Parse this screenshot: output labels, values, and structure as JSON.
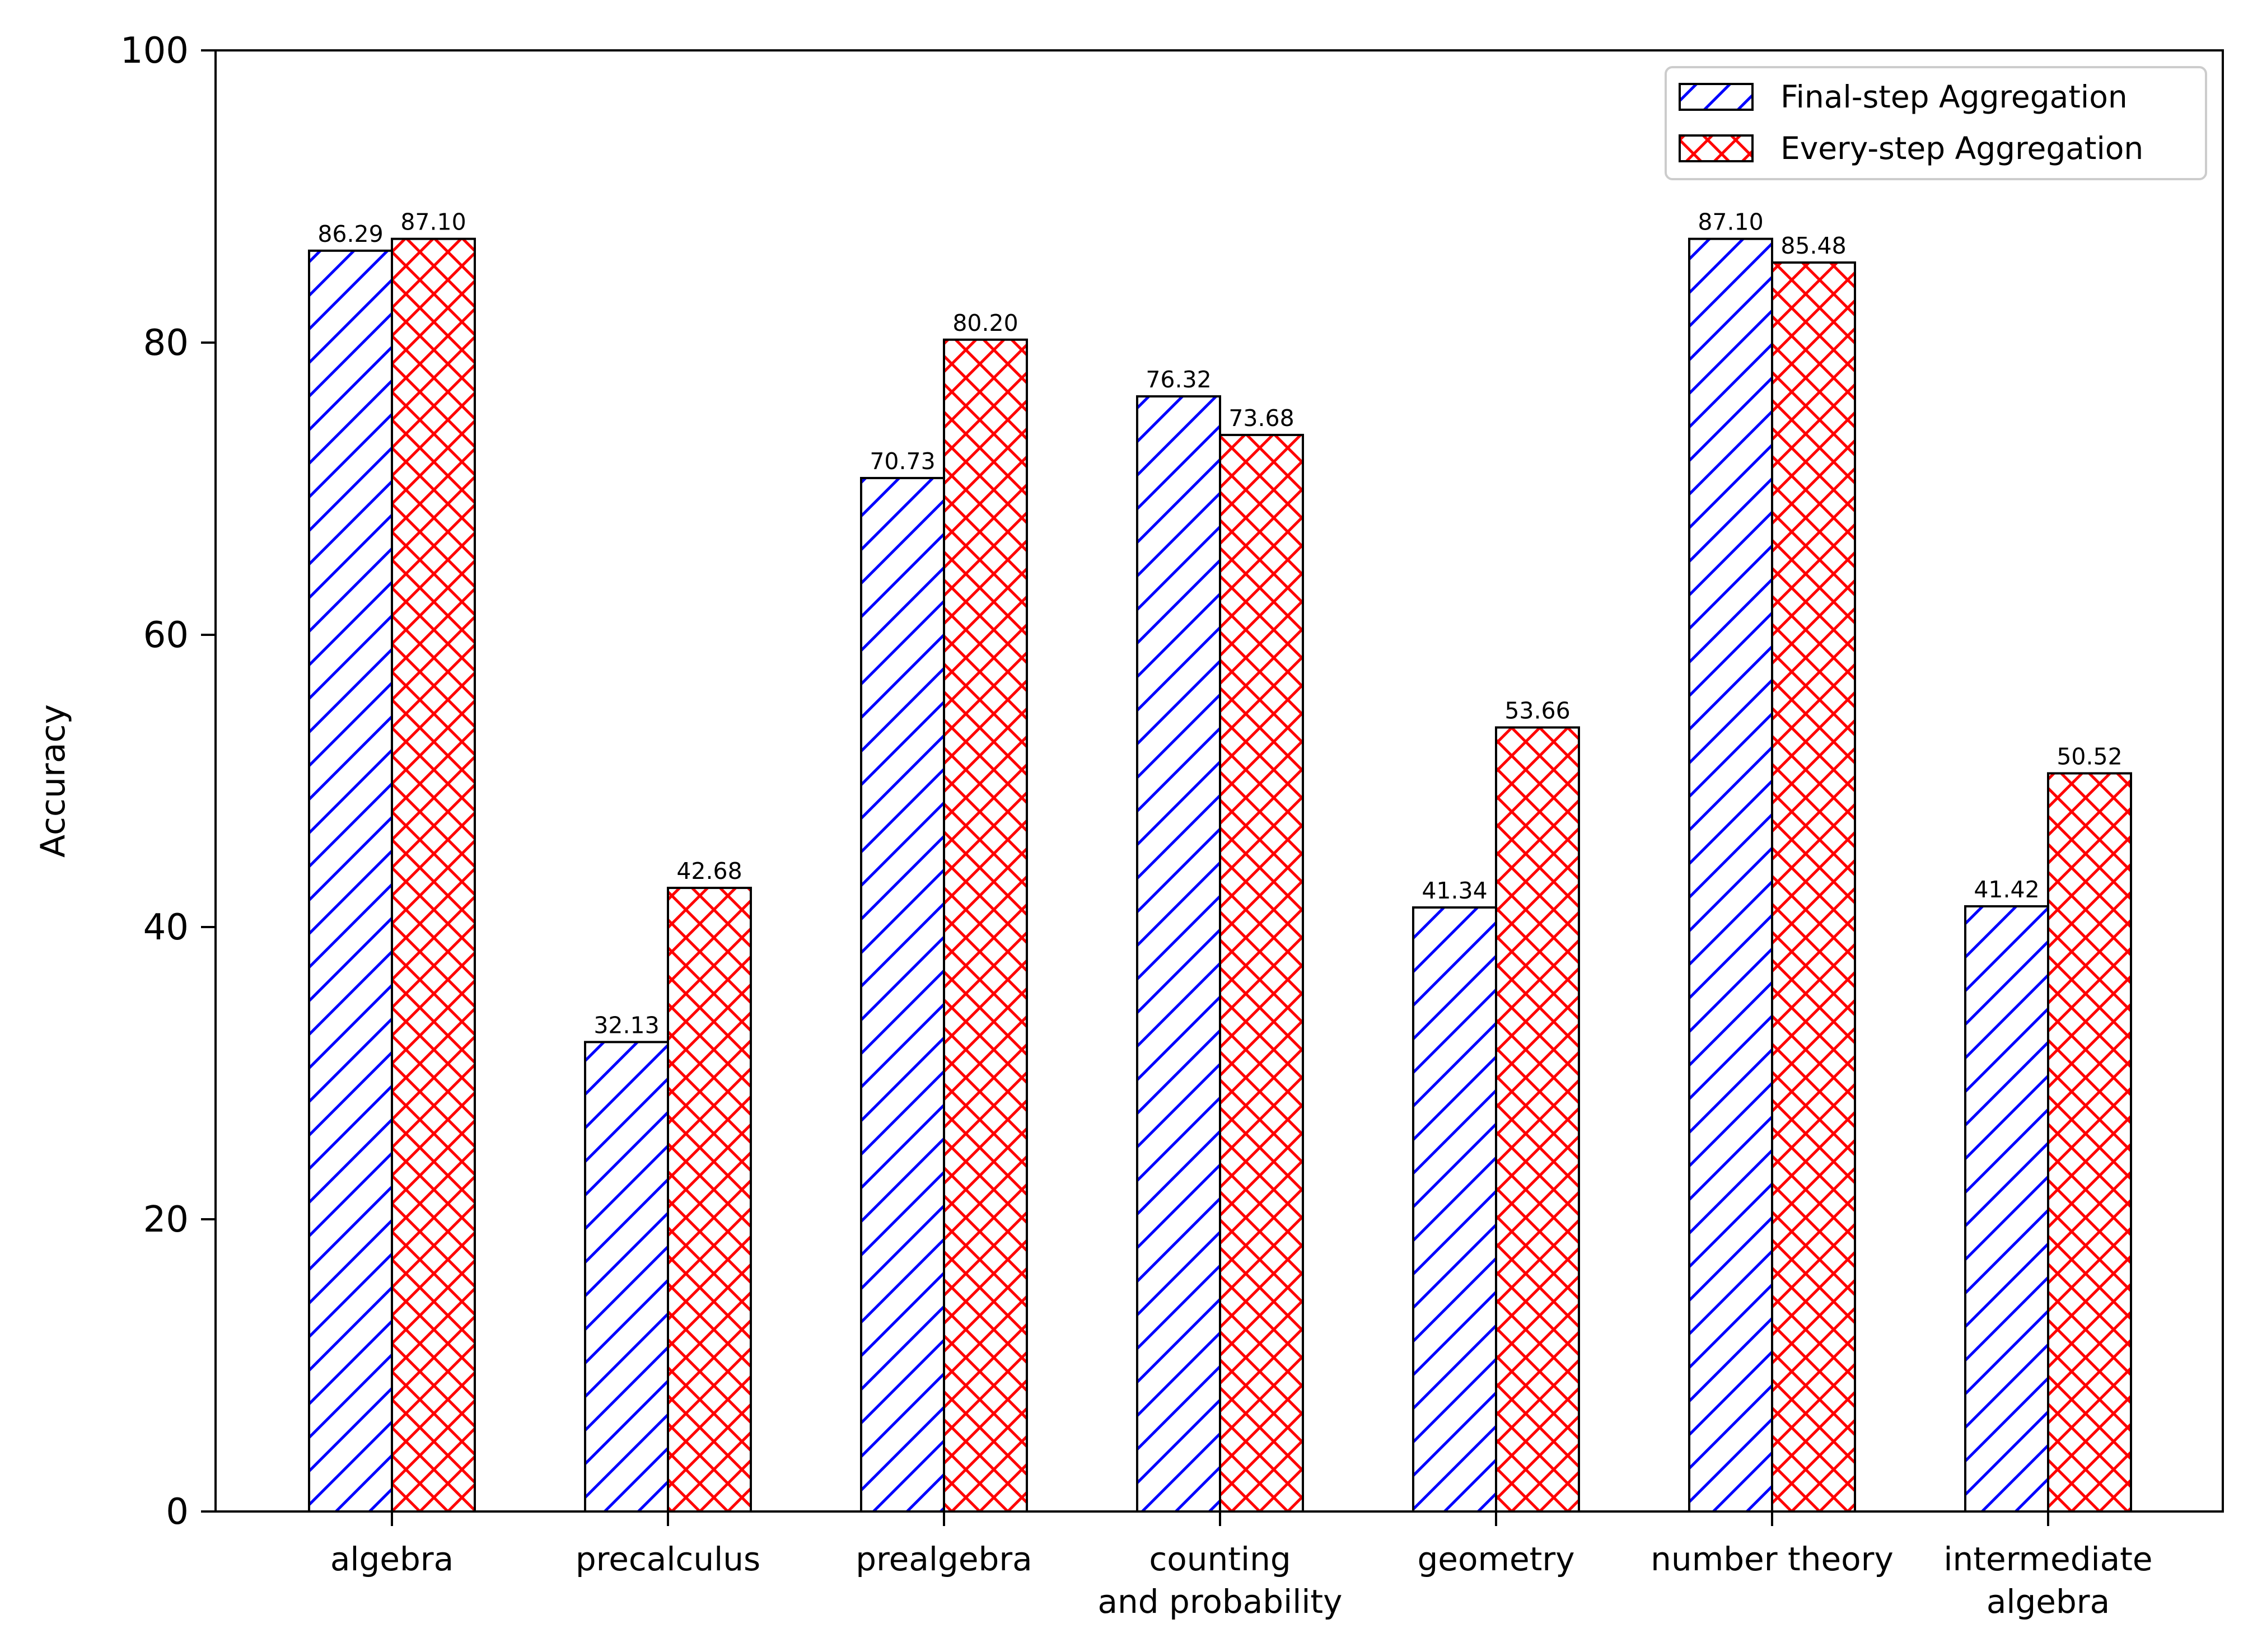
{
  "chart_data": {
    "type": "bar",
    "title": "",
    "xlabel": "",
    "ylabel": "Accuracy",
    "ylim": [
      0,
      100
    ],
    "yticks": [
      0,
      20,
      40,
      60,
      80,
      100
    ],
    "grid": false,
    "legend_position": "top-right",
    "categories": [
      [
        "algebra"
      ],
      [
        "precalculus"
      ],
      [
        "prealgebra"
      ],
      [
        "counting",
        "and probability"
      ],
      [
        "geometry"
      ],
      [
        "number theory"
      ],
      [
        "intermediate",
        "algebra"
      ]
    ],
    "series": [
      {
        "name": "Final-step Aggregation",
        "color": "#0000ff",
        "hatch": "diagonal",
        "values": [
          86.29,
          32.13,
          70.73,
          76.32,
          41.34,
          87.1,
          41.42
        ],
        "labels": [
          "86.29",
          "32.13",
          "70.73",
          "76.32",
          "41.34",
          "87.10",
          "41.42"
        ]
      },
      {
        "name": "Every-step Aggregation",
        "color": "#ff0000",
        "hatch": "crosshatch",
        "values": [
          87.1,
          42.68,
          80.2,
          73.68,
          53.66,
          85.48,
          50.52
        ],
        "labels": [
          "87.10",
          "42.68",
          "80.20",
          "73.68",
          "53.66",
          "85.48",
          "50.52"
        ]
      }
    ]
  }
}
